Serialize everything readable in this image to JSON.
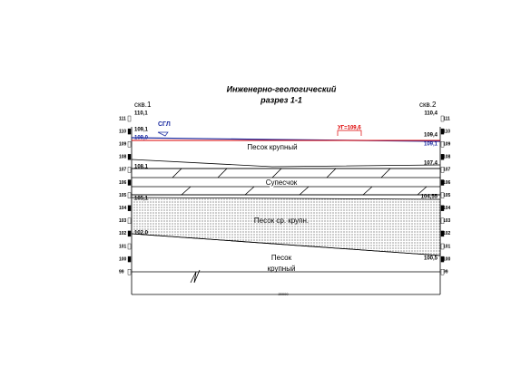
{
  "title": [
    "Инженерно-геологический",
    "разрез 1-1"
  ],
  "wells": [
    {
      "name": "скв.1",
      "labels": [
        "110,1",
        "109,1",
        "109,0",
        "108,1",
        "105,1",
        "102,0"
      ]
    },
    {
      "name": "скв.2",
      "labels": [
        "110,4",
        "109,4",
        "109,1",
        "107,4",
        "104,55",
        "100,5"
      ]
    }
  ],
  "scale": [
    "111",
    "110",
    "109",
    "108",
    "107",
    "106",
    "105",
    "104",
    "103",
    "102",
    "101",
    "100",
    "99"
  ],
  "ground_marker": "СГЛ",
  "water_level": "УГ=109,6",
  "layers": [
    [
      "Песок крупный"
    ],
    [
      "Супесчок"
    ],
    [
      "Песок ср. крупн."
    ],
    [
      "Песок",
      "крупный"
    ]
  ],
  "footer": "20000"
}
